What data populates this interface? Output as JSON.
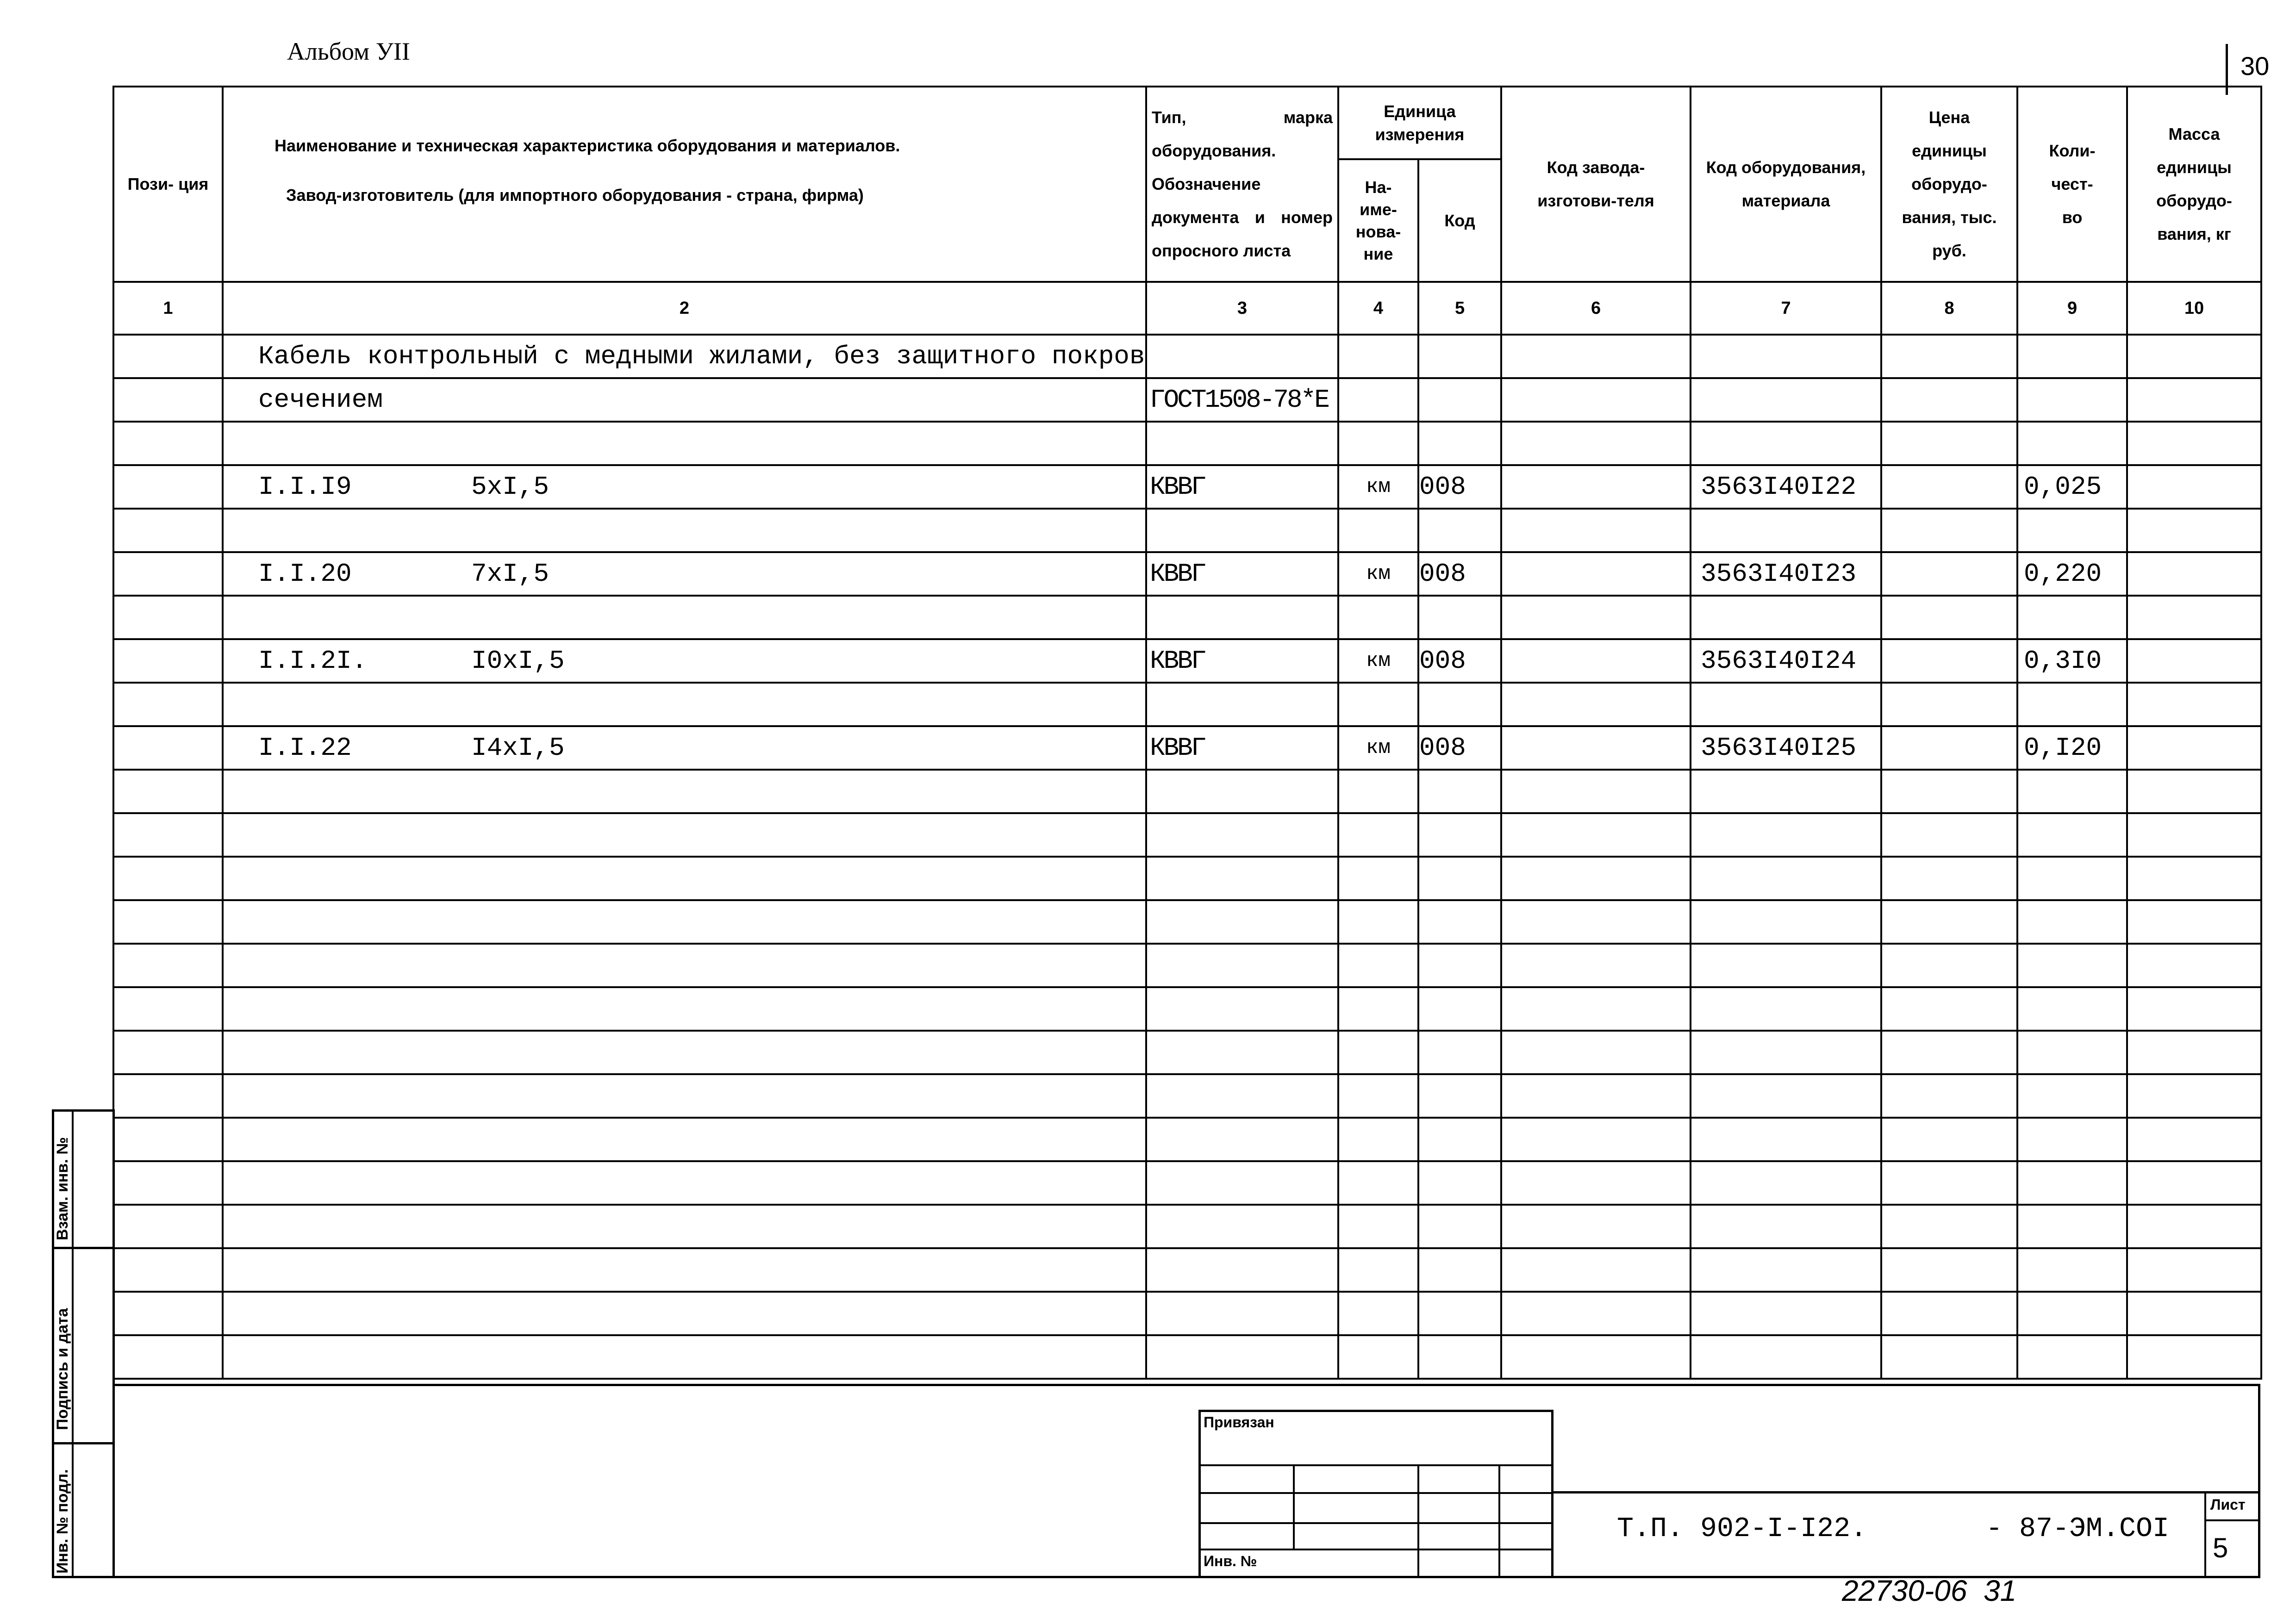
{
  "album": "Альбом УII",
  "page_number": "30",
  "header": {
    "col1": "Пози-\nция",
    "col2_line1": "Наименование и техническая характеристика оборудования и материалов.",
    "col2_line2": "Завод-изготовитель (для импортного оборудования - страна, фирма)",
    "col3": "Тип, марка оборудования. Обозначение документа и номер опросного листа",
    "unit_group": "Единица измерения",
    "col4": "На-име-нова-ние",
    "col5": "Код",
    "col6": "Код завода-изготови-теля",
    "col7": "Код оборудования, материала",
    "col8": "Цена единицы оборудо-вания, тыс. руб.",
    "col9": "Коли-чест-во",
    "col10": "Масса единицы оборудо-вания, кг",
    "numbers": [
      "1",
      "2",
      "3",
      "4",
      "5",
      "6",
      "7",
      "8",
      "9",
      "10"
    ]
  },
  "rows": [
    {
      "text": "Кабель контрольный с медными жилами, без защитного покрова,"
    },
    {
      "text": "сечением",
      "type": "ГОСТ1508-78*Е"
    },
    {},
    {
      "pos": "I.I.I9",
      "text": "5xI,5",
      "type": "КВВГ",
      "unit": "км",
      "unit_code": "008",
      "code": "3563I40I22",
      "qty": "0,025"
    },
    {},
    {
      "pos": "I.I.20",
      "text": "7xI,5",
      "type": "КВВГ",
      "unit": "км",
      "unit_code": "008",
      "code": "3563I40I23",
      "qty": "0,220"
    },
    {},
    {
      "pos": "I.I.2I.",
      "text": "I0xI,5",
      "type": "КВВГ",
      "unit": "км",
      "unit_code": "008",
      "code": "3563I40I24",
      "qty": "0,3I0"
    },
    {},
    {
      "pos": "I.I.22",
      "text": "I4xI,5",
      "type": "КВВГ",
      "unit": "км",
      "unit_code": "008",
      "code": "3563I40I25",
      "qty": "0,I20"
    },
    {},
    {},
    {},
    {},
    {},
    {},
    {},
    {},
    {},
    {},
    {},
    {},
    {},
    {}
  ],
  "side_stamp": {
    "replace_inv": "Взам. инв. №",
    "sign_date": "Подпись и дата",
    "inv_orig": "Инв. № подл."
  },
  "title_block": {
    "bound": "Привязан",
    "inv_no": "Инв. №",
    "doc_code": "Т.П. 902-I-I22.",
    "doc_suffix": "- 87-ЭМ.СОI",
    "sheet_label": "Лист",
    "sheet": "5"
  },
  "footer_handwritten": "22730-06  31"
}
